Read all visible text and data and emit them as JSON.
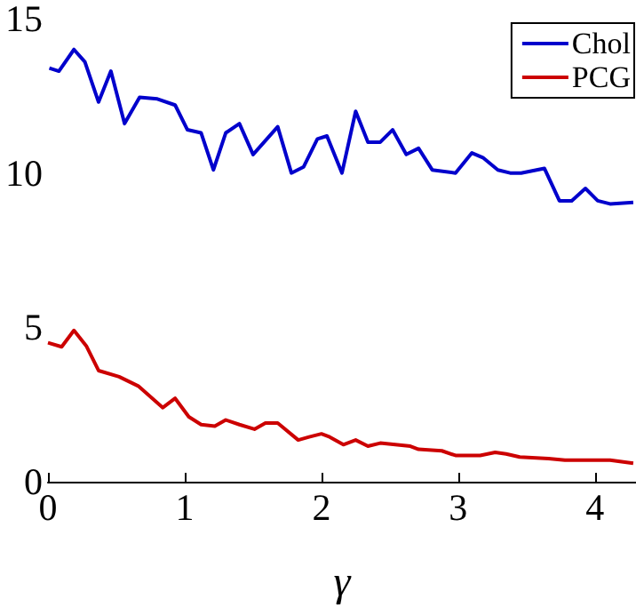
{
  "chart_data": {
    "type": "line",
    "xlabel": "γ",
    "xlim": [
      0,
      4.3
    ],
    "xticks": [
      0,
      1,
      2,
      3,
      4
    ],
    "ylim": [
      0,
      15
    ],
    "yticks": [
      0,
      5,
      10,
      15
    ],
    "grid": false,
    "legend": "top right",
    "marker": "none",
    "line_style": "solid",
    "series": [
      {
        "name": "Chol",
        "color": "#0000cc",
        "x": [
          0.01,
          0.08,
          0.19,
          0.27,
          0.37,
          0.46,
          0.56,
          0.67,
          0.8,
          0.93,
          1.02,
          1.12,
          1.21,
          1.3,
          1.4,
          1.5,
          1.68,
          1.78,
          1.87,
          1.97,
          2.04,
          2.15,
          2.25,
          2.34,
          2.43,
          2.52,
          2.62,
          2.71,
          2.81,
          2.98,
          3.1,
          3.18,
          3.29,
          3.38,
          3.46,
          3.63,
          3.74,
          3.83,
          3.93,
          4.02,
          4.11,
          4.28
        ],
        "values": [
          13.4,
          13.3,
          14.0,
          13.6,
          12.3,
          13.3,
          11.6,
          12.45,
          12.4,
          12.2,
          11.4,
          11.3,
          10.1,
          11.3,
          11.6,
          10.6,
          11.5,
          10.0,
          10.2,
          11.1,
          11.2,
          10.0,
          12.0,
          11.0,
          11.0,
          11.4,
          10.6,
          10.8,
          10.1,
          10.0,
          10.65,
          10.5,
          10.1,
          10.0,
          10.0,
          10.15,
          9.1,
          9.1,
          9.5,
          9.1,
          9.0,
          9.05
        ]
      },
      {
        "name": "PCG",
        "color": "#cc0000",
        "x": [
          0,
          0.1,
          0.19,
          0.28,
          0.37,
          0.52,
          0.66,
          0.84,
          0.93,
          1.03,
          1.12,
          1.22,
          1.3,
          1.4,
          1.51,
          1.59,
          1.68,
          1.83,
          1.91,
          2.0,
          2.06,
          2.16,
          2.25,
          2.34,
          2.43,
          2.65,
          2.71,
          2.88,
          2.98,
          3.16,
          3.27,
          3.35,
          3.45,
          3.66,
          3.78,
          4.11,
          4.28
        ],
        "values": [
          4.5,
          4.37,
          4.9,
          4.4,
          3.6,
          3.4,
          3.1,
          2.4,
          2.7,
          2.1,
          1.85,
          1.8,
          2.0,
          1.85,
          1.7,
          1.9,
          1.9,
          1.35,
          1.45,
          1.55,
          1.45,
          1.2,
          1.35,
          1.15,
          1.25,
          1.15,
          1.05,
          1.0,
          0.85,
          0.85,
          0.95,
          0.9,
          0.8,
          0.75,
          0.7,
          0.7,
          0.6
        ]
      }
    ]
  }
}
